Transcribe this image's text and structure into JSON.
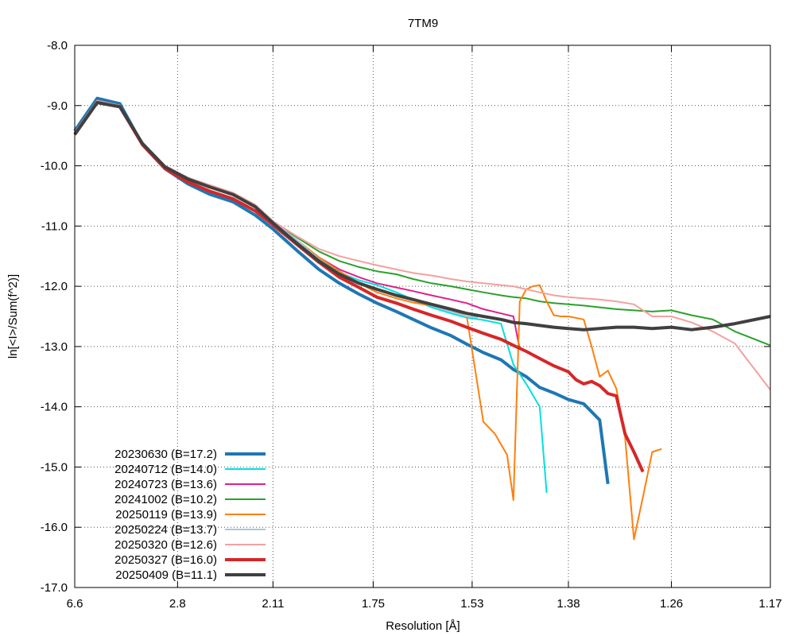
{
  "chart_data": {
    "type": "line",
    "title": "7TM9",
    "xlabel": "Resolution [Å]",
    "ylabel": "ln[<I>/Sum(f^2)]",
    "x_scale": "reciprocal-squared",
    "x_ticks": [
      "6.6",
      "2.8",
      "2.11",
      "1.75",
      "1.53",
      "1.38",
      "1.26",
      "1.17"
    ],
    "y_ticks": [
      "-8.0",
      "-9.0",
      "-10.0",
      "-11.0",
      "-12.0",
      "-13.0",
      "-14.0",
      "-15.0",
      "-16.0",
      "-17.0"
    ],
    "xlim": [
      6.6,
      1.17
    ],
    "ylim": [
      -17.0,
      -8.0
    ],
    "grid": true,
    "legend_position": "bottom-left",
    "series": [
      {
        "name": "20230630 (B=17.2)",
        "color": "#1f77b4",
        "width": 4,
        "x": [
          6.6,
          4.67,
          3.81,
          3.3,
          2.95,
          2.69,
          2.5,
          2.33,
          2.2,
          2.11,
          2.0,
          1.92,
          1.85,
          1.79,
          1.74,
          1.69,
          1.65,
          1.61,
          1.57,
          1.54,
          1.51,
          1.48,
          1.46,
          1.44,
          1.42,
          1.4,
          1.38,
          1.36,
          1.34,
          1.33
        ],
        "y": [
          -9.42,
          -8.88,
          -8.97,
          -9.65,
          -10.05,
          -10.3,
          -10.47,
          -10.6,
          -10.82,
          -11.05,
          -11.42,
          -11.72,
          -11.95,
          -12.13,
          -12.28,
          -12.42,
          -12.55,
          -12.69,
          -12.82,
          -12.96,
          -13.1,
          -13.22,
          -13.38,
          -13.5,
          -13.68,
          -13.77,
          -13.88,
          -13.95,
          -14.22,
          -15.28
        ]
      },
      {
        "name": "20240712 (B=14.0)",
        "color": "#00e0e0",
        "width": 2,
        "x": [
          6.6,
          4.67,
          3.81,
          3.3,
          2.95,
          2.69,
          2.5,
          2.33,
          2.2,
          2.11,
          2.0,
          1.92,
          1.85,
          1.79,
          1.74,
          1.69,
          1.65,
          1.61,
          1.57,
          1.54,
          1.51,
          1.48,
          1.46,
          1.44,
          1.42,
          1.41
        ],
        "y": [
          -9.45,
          -8.92,
          -9.0,
          -9.65,
          -10.0,
          -10.22,
          -10.35,
          -10.47,
          -10.68,
          -10.95,
          -11.28,
          -11.55,
          -11.77,
          -11.9,
          -11.98,
          -12.1,
          -12.22,
          -12.35,
          -12.45,
          -12.52,
          -12.56,
          -12.62,
          -13.3,
          -13.62,
          -14.0,
          -15.43
        ]
      },
      {
        "name": "20240723 (B=13.6)",
        "color": "#e0208a",
        "width": 2,
        "x": [
          6.6,
          4.67,
          3.81,
          3.3,
          2.95,
          2.69,
          2.5,
          2.33,
          2.2,
          2.11,
          2.0,
          1.92,
          1.85,
          1.79,
          1.74,
          1.69,
          1.65,
          1.61,
          1.57,
          1.54,
          1.51,
          1.48,
          1.46,
          1.45
        ],
        "y": [
          -9.45,
          -8.92,
          -9.0,
          -9.62,
          -10.0,
          -10.2,
          -10.32,
          -10.45,
          -10.65,
          -10.92,
          -11.25,
          -11.52,
          -11.72,
          -11.85,
          -11.95,
          -12.02,
          -12.08,
          -12.15,
          -12.22,
          -12.28,
          -12.38,
          -12.45,
          -12.5,
          -13.05
        ]
      },
      {
        "name": "20241002 (B=10.2)",
        "color": "#2ca02c",
        "width": 2,
        "x": [
          6.6,
          4.67,
          3.81,
          3.3,
          2.95,
          2.69,
          2.5,
          2.33,
          2.2,
          2.11,
          2.0,
          1.92,
          1.85,
          1.79,
          1.74,
          1.69,
          1.65,
          1.61,
          1.57,
          1.54,
          1.51,
          1.48,
          1.46,
          1.44,
          1.42,
          1.4,
          1.38,
          1.36,
          1.34,
          1.32,
          1.3,
          1.28,
          1.26,
          1.24,
          1.22,
          1.2,
          1.17
        ],
        "y": [
          -9.45,
          -8.92,
          -9.0,
          -9.62,
          -10.0,
          -10.2,
          -10.32,
          -10.45,
          -10.65,
          -10.92,
          -11.2,
          -11.42,
          -11.58,
          -11.68,
          -11.75,
          -11.8,
          -11.88,
          -11.95,
          -12.0,
          -12.05,
          -12.1,
          -12.15,
          -12.18,
          -12.2,
          -12.25,
          -12.28,
          -12.3,
          -12.32,
          -12.35,
          -12.38,
          -12.4,
          -12.42,
          -12.4,
          -12.48,
          -12.55,
          -12.75,
          -12.98
        ]
      },
      {
        "name": "20250119 (B=13.9)",
        "color": "#ff7f0e",
        "width": 2,
        "x": [
          6.6,
          4.67,
          3.81,
          3.3,
          2.95,
          2.69,
          2.5,
          2.33,
          2.2,
          2.11,
          2.0,
          1.92,
          1.85,
          1.79,
          1.74,
          1.69,
          1.65,
          1.61,
          1.57,
          1.54,
          1.51,
          1.49,
          1.47,
          1.46,
          1.45,
          1.44,
          1.43,
          1.42,
          1.41,
          1.4,
          1.39,
          1.38,
          1.36,
          1.35,
          1.34,
          1.33,
          1.32,
          1.31,
          1.3,
          1.29,
          1.28,
          1.27
        ],
        "y": [
          -9.45,
          -8.92,
          -9.0,
          -9.62,
          -10.0,
          -10.2,
          -10.32,
          -10.45,
          -10.65,
          -10.92,
          -11.25,
          -11.52,
          -11.75,
          -11.95,
          -12.1,
          -12.2,
          -12.27,
          -12.32,
          -12.4,
          -12.5,
          -14.25,
          -14.45,
          -14.8,
          -15.55,
          -12.25,
          -12.05,
          -12.0,
          -11.98,
          -12.25,
          -12.48,
          -12.5,
          -12.5,
          -12.55,
          -13.0,
          -13.5,
          -13.4,
          -13.7,
          -14.5,
          -16.2,
          -15.5,
          -14.75,
          -14.7
        ]
      },
      {
        "name": "20250224 (B=13.7)",
        "color": "#a6c8d8",
        "width": 2,
        "x": [
          6.6,
          4.67,
          3.81,
          3.3,
          2.95,
          2.69,
          2.5,
          2.33,
          2.2,
          2.11,
          2.0,
          1.92,
          1.85,
          1.79,
          1.74,
          1.69,
          1.65,
          1.61,
          1.57,
          1.54,
          1.52
        ],
        "y": [
          -9.45,
          -8.92,
          -9.0,
          -9.62,
          -10.0,
          -10.2,
          -10.32,
          -10.45,
          -10.65,
          -10.92,
          -11.25,
          -11.55,
          -11.8,
          -11.95,
          -12.05,
          -12.15,
          -12.22,
          -12.32,
          -12.42,
          -12.5,
          -12.52
        ]
      },
      {
        "name": "20250320 (B=12.6)",
        "color": "#f4a0a0",
        "width": 2,
        "x": [
          6.6,
          4.67,
          3.81,
          3.3,
          2.95,
          2.69,
          2.5,
          2.33,
          2.2,
          2.11,
          2.0,
          1.92,
          1.85,
          1.79,
          1.74,
          1.69,
          1.65,
          1.61,
          1.57,
          1.54,
          1.51,
          1.48,
          1.46,
          1.44,
          1.42,
          1.4,
          1.38,
          1.36,
          1.34,
          1.32,
          1.3,
          1.28,
          1.26,
          1.24,
          1.22,
          1.2,
          1.17
        ],
        "y": [
          -9.45,
          -8.92,
          -9.0,
          -9.62,
          -10.0,
          -10.2,
          -10.32,
          -10.45,
          -10.65,
          -10.92,
          -11.18,
          -11.38,
          -11.5,
          -11.58,
          -11.65,
          -11.72,
          -11.78,
          -11.82,
          -11.88,
          -11.92,
          -11.95,
          -11.98,
          -12.0,
          -12.05,
          -12.1,
          -12.15,
          -12.18,
          -12.2,
          -12.22,
          -12.25,
          -12.3,
          -12.5,
          -12.5,
          -12.6,
          -12.75,
          -12.95,
          -13.72
        ]
      },
      {
        "name": "20250327 (B=16.0)",
        "color": "#d62728",
        "width": 4,
        "x": [
          6.6,
          4.67,
          3.81,
          3.3,
          2.95,
          2.69,
          2.5,
          2.33,
          2.2,
          2.11,
          2.0,
          1.92,
          1.85,
          1.79,
          1.74,
          1.69,
          1.65,
          1.61,
          1.57,
          1.54,
          1.51,
          1.48,
          1.46,
          1.44,
          1.42,
          1.4,
          1.38,
          1.37,
          1.36,
          1.35,
          1.34,
          1.33,
          1.32,
          1.31,
          1.3,
          1.29
        ],
        "y": [
          -9.48,
          -8.95,
          -9.02,
          -9.65,
          -10.05,
          -10.27,
          -10.42,
          -10.55,
          -10.75,
          -10.98,
          -11.32,
          -11.6,
          -11.85,
          -12.02,
          -12.18,
          -12.28,
          -12.38,
          -12.48,
          -12.58,
          -12.68,
          -12.78,
          -12.88,
          -12.98,
          -13.08,
          -13.2,
          -13.32,
          -13.42,
          -13.55,
          -13.62,
          -13.58,
          -13.65,
          -13.78,
          -13.82,
          -14.45,
          -14.75,
          -15.08
        ]
      },
      {
        "name": "20250409 (B=11.1)",
        "color": "#404040",
        "width": 4,
        "x": [
          6.6,
          4.67,
          3.81,
          3.3,
          2.95,
          2.69,
          2.5,
          2.33,
          2.2,
          2.11,
          2.0,
          1.92,
          1.85,
          1.79,
          1.74,
          1.69,
          1.65,
          1.61,
          1.57,
          1.54,
          1.51,
          1.48,
          1.46,
          1.44,
          1.42,
          1.4,
          1.38,
          1.36,
          1.34,
          1.32,
          1.3,
          1.28,
          1.26,
          1.24,
          1.22,
          1.2,
          1.17
        ],
        "y": [
          -9.48,
          -8.95,
          -9.02,
          -9.63,
          -10.02,
          -10.22,
          -10.35,
          -10.48,
          -10.68,
          -10.95,
          -11.3,
          -11.58,
          -11.8,
          -11.95,
          -12.05,
          -12.15,
          -12.22,
          -12.3,
          -12.38,
          -12.45,
          -12.5,
          -12.55,
          -12.6,
          -12.62,
          -12.65,
          -12.68,
          -12.7,
          -12.72,
          -12.7,
          -12.68,
          -12.68,
          -12.7,
          -12.68,
          -12.72,
          -12.68,
          -12.62,
          -12.5
        ]
      }
    ]
  }
}
